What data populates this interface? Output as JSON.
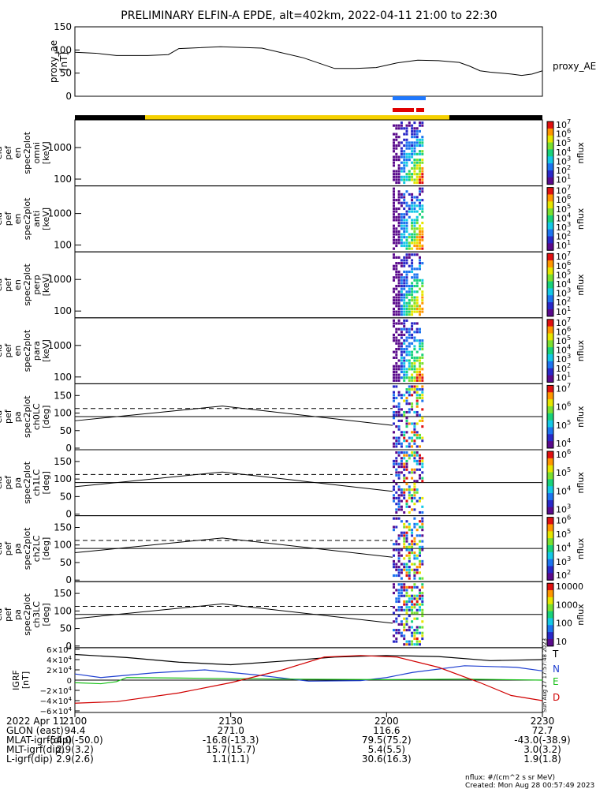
{
  "title": "PRELIMINARY ELFIN-A EPDE, alt=402km, 2022-04-11 21:00 to 22:30",
  "colors": {
    "data_blue": "#1e78ff",
    "data_red": "#e00000",
    "science_zone": "#f5d000",
    "T": "#000000",
    "N": "#1f3fd0",
    "E": "#16c016",
    "D": "#d00000"
  },
  "chart_data": [
    {
      "type": "line",
      "name": "proxy_ae",
      "ylabel": [
        "proxy_ae",
        "[nT]"
      ],
      "yticks": [
        "150",
        "100",
        "50",
        "0"
      ],
      "ylim": [
        0,
        150
      ],
      "legend": "proxy_AE",
      "x_minutes": [
        0,
        4,
        8,
        14,
        18,
        20,
        28,
        36,
        44,
        50,
        54,
        58,
        62,
        66,
        70,
        72,
        74,
        76,
        78,
        80,
        82,
        84,
        86,
        88,
        90
      ],
      "values": [
        95,
        93,
        88,
        88,
        90,
        103,
        107,
        104,
        83,
        60,
        60,
        62,
        72,
        78,
        77,
        75,
        73,
        65,
        55,
        52,
        50,
        48,
        45,
        48,
        55
      ]
    },
    {
      "type": "heatmap",
      "panels": [
        {
          "ylabel": [
            "ela",
            "pef",
            "en",
            "spec2plot",
            "omni",
            "[keV]"
          ],
          "yticks": [
            "1000",
            "100"
          ],
          "colorbar": {
            "ticks": [
              "10^7",
              "10^6",
              "10^5",
              "10^4",
              "10^3",
              "10^2",
              "10^1"
            ],
            "label": "nflux"
          }
        },
        {
          "ylabel": [
            "ela",
            "pef",
            "en",
            "spec2plot",
            "anti",
            "[keV]"
          ],
          "yticks": [
            "1000",
            "100"
          ],
          "colorbar": {
            "ticks": [
              "10^7",
              "10^6",
              "10^5",
              "10^4",
              "10^3",
              "10^2",
              "10^1"
            ],
            "label": "nflux"
          }
        },
        {
          "ylabel": [
            "ela",
            "pef",
            "en",
            "spec2plot",
            "perp",
            "[keV]"
          ],
          "yticks": [
            "1000",
            "100"
          ],
          "colorbar": {
            "ticks": [
              "10^7",
              "10^6",
              "10^5",
              "10^4",
              "10^3",
              "10^2",
              "10^1"
            ],
            "label": "nflux"
          }
        },
        {
          "ylabel": [
            "ela",
            "pef",
            "en",
            "spec2plot",
            "para",
            "[keV]"
          ],
          "yticks": [
            "1000",
            "100"
          ],
          "colorbar": {
            "ticks": [
              "10^7",
              "10^6",
              "10^5",
              "10^4",
              "10^3",
              "10^2",
              "10^1"
            ],
            "label": "nflux"
          }
        },
        {
          "ylabel": [
            "ela",
            "pef",
            "pa",
            "spec2plot",
            "ch0LC",
            "[deg]"
          ],
          "yticks": [
            "150",
            "100",
            "50",
            "0"
          ],
          "colorbar": {
            "ticks": [
              "10^7",
              "10^6",
              "10^5",
              "10^4"
            ],
            "label": "nflux"
          }
        },
        {
          "ylabel": [
            "ela",
            "pef",
            "pa",
            "spec2plot",
            "ch1LC",
            "[deg]"
          ],
          "yticks": [
            "150",
            "100",
            "50",
            "0"
          ],
          "colorbar": {
            "ticks": [
              "10^6",
              "10^5",
              "10^4",
              "10^3"
            ],
            "label": "nflux"
          }
        },
        {
          "ylabel": [
            "ela",
            "pef",
            "pa",
            "spec2plot",
            "ch2LC",
            "[deg]"
          ],
          "yticks": [
            "150",
            "100",
            "50",
            "0"
          ],
          "colorbar": {
            "ticks": [
              "10^6",
              "10^5",
              "10^4",
              "10^3",
              "10^2"
            ],
            "label": "nflux"
          }
        },
        {
          "ylabel": [
            "ela",
            "pef",
            "pa",
            "spec2plot",
            "ch3LC",
            "[deg]"
          ],
          "yticks": [
            "150",
            "100",
            "50",
            "0"
          ],
          "colorbar": {
            "ticks": [
              "10000",
              "1000",
              "100",
              "10"
            ],
            "label": "nflux"
          }
        }
      ]
    },
    {
      "type": "line",
      "name": "GRF",
      "ylabel": [
        "IGRF",
        "[nT]"
      ],
      "yticks": [
        "6×10^4",
        "4×10^4",
        "2×10^4",
        "0",
        "−2×10^4",
        "−4×10^4",
        "−6×10^4"
      ],
      "ylim": [
        -60000,
        60000
      ],
      "series": [
        {
          "name": "T",
          "x_minutes": [
            0,
            10,
            20,
            30,
            40,
            50,
            60,
            70,
            80,
            90
          ],
          "values": [
            50000,
            44000,
            35000,
            30000,
            37000,
            45000,
            48000,
            46000,
            38000,
            40000
          ]
        },
        {
          "name": "N",
          "x_minutes": [
            0,
            5,
            15,
            25,
            35,
            45,
            55,
            60,
            65,
            75,
            85,
            90
          ],
          "values": [
            12000,
            5000,
            14000,
            20000,
            10000,
            -2000,
            -1000,
            5000,
            15000,
            28000,
            25000,
            18000
          ]
        },
        {
          "name": "E",
          "x_minutes": [
            0,
            5,
            8,
            10,
            20,
            40,
            60,
            75,
            90
          ],
          "values": [
            -5000,
            -7000,
            -3000,
            5000,
            4000,
            2000,
            1000,
            2000,
            0
          ]
        },
        {
          "name": "D",
          "x_minutes": [
            0,
            8,
            20,
            30,
            40,
            48,
            55,
            62,
            70,
            78,
            84,
            90
          ],
          "values": [
            -45000,
            -42000,
            -25000,
            -5000,
            20000,
            45000,
            48000,
            45000,
            25000,
            -5000,
            -30000,
            -40000
          ]
        }
      ]
    }
  ],
  "time_axis": {
    "ticks": [
      "2100",
      "2130",
      "2200",
      "2230"
    ]
  },
  "footer_rows": [
    {
      "label": "2022 Apr 11",
      "values": [
        "2100",
        "2130",
        "2200",
        "2230"
      ]
    },
    {
      "label": "GLON (east)",
      "values": [
        "94.4",
        "271.0",
        "116.6",
        "72.7"
      ]
    },
    {
      "label": "MLAT-igrf(dip)",
      "values": [
        "-54.0(-50.0)",
        "-16.8(-13.3)",
        "79.5(75.2)",
        "-43.0(-38.9)"
      ]
    },
    {
      "label": "MLT-igrf(dip)",
      "values": [
        "2.9(3.2)",
        "15.7(15.7)",
        "5.4(5.5)",
        "3.0(3.2)"
      ]
    },
    {
      "label": "L-igrf(dip)",
      "values": [
        "2.9(2.6)",
        "1.1(1.1)",
        "30.6(16.3)",
        "1.9(1.8)"
      ]
    }
  ],
  "units_note": "nflux: #/(cm^2 s sr MeV)",
  "created_note": "Created: Mon Aug 28 00:57:49 2023",
  "side_stamp": "Sun Aug 27 17:57:48 2023"
}
